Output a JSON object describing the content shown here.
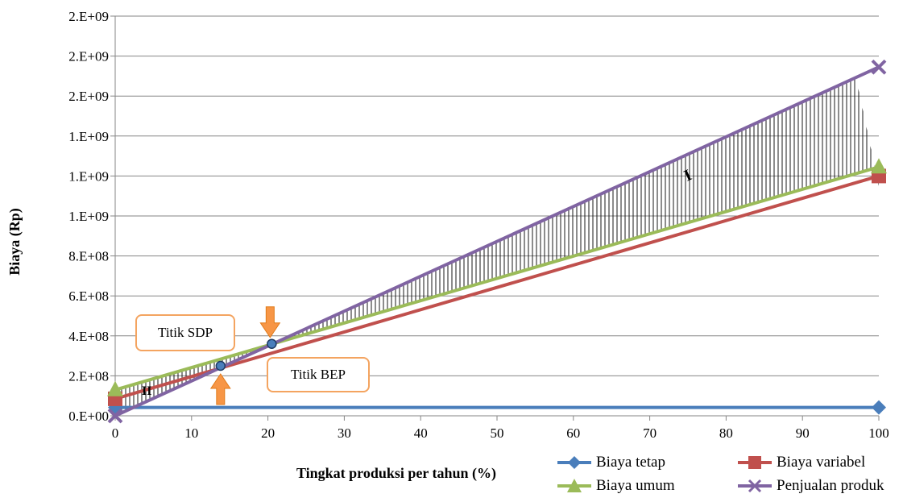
{
  "chart_data": {
    "type": "line",
    "xlabel": "Tingkat produksi per tahun (%)",
    "ylabel": "Biaya  (Rp)",
    "xlim": [
      0,
      100
    ],
    "ylim": [
      0,
      2000000000
    ],
    "x_ticks": [
      "0",
      "10",
      "20",
      "30",
      "40",
      "50",
      "60",
      "70",
      "80",
      "90",
      "100"
    ],
    "y_ticks": [
      {
        "value": 0,
        "label": "0.E+00"
      },
      {
        "value": 200000000,
        "label": "2.E+08"
      },
      {
        "value": 400000000,
        "label": "4.E+08"
      },
      {
        "value": 600000000,
        "label": "6.E+08"
      },
      {
        "value": 800000000,
        "label": "8.E+08"
      },
      {
        "value": 1000000000,
        "label": "1.E+09"
      },
      {
        "value": 1200000000,
        "label": "1.E+09"
      },
      {
        "value": 1400000000,
        "label": "1.E+09"
      },
      {
        "value": 1600000000,
        "label": "2.E+09"
      },
      {
        "value": 1800000000,
        "label": "2.E+09"
      },
      {
        "value": 2000000000,
        "label": "2.E+09"
      }
    ],
    "grid": "horizontal",
    "legend_position": "bottom-right",
    "series": [
      {
        "name": "Biaya tetap",
        "color": "#4a7ebb",
        "marker": "diamond",
        "x": [
          0,
          100
        ],
        "y": [
          42000000,
          42000000
        ]
      },
      {
        "name": "Biaya variabel",
        "color": "#c0504d",
        "marker": "square",
        "x": [
          0,
          100
        ],
        "y": [
          85000000,
          1200000000
        ]
      },
      {
        "name": "Biaya umum",
        "color": "#9bbb59",
        "marker": "triangle",
        "x": [
          0,
          100
        ],
        "y": [
          130000000,
          1245000000
        ]
      },
      {
        "name": "Penjualan produk",
        "color": "#8064a2",
        "marker": "x",
        "x": [
          0,
          100
        ],
        "y": [
          0,
          1745000000
        ]
      }
    ],
    "points": [
      {
        "name": "sdp",
        "x": 20.5,
        "y": 360000000
      },
      {
        "name": "bep",
        "x": 13.8,
        "y": 250000000
      }
    ],
    "region_labels": {
      "profit": "I",
      "loss": "II"
    },
    "annotations": {
      "sdp": "Titik  SDP",
      "bep": "Titik  BEP"
    },
    "colors": {
      "arrow": "#f79646",
      "callout_border": "#f4a460",
      "point": "#4a7ebb",
      "grid": "#868686"
    }
  }
}
